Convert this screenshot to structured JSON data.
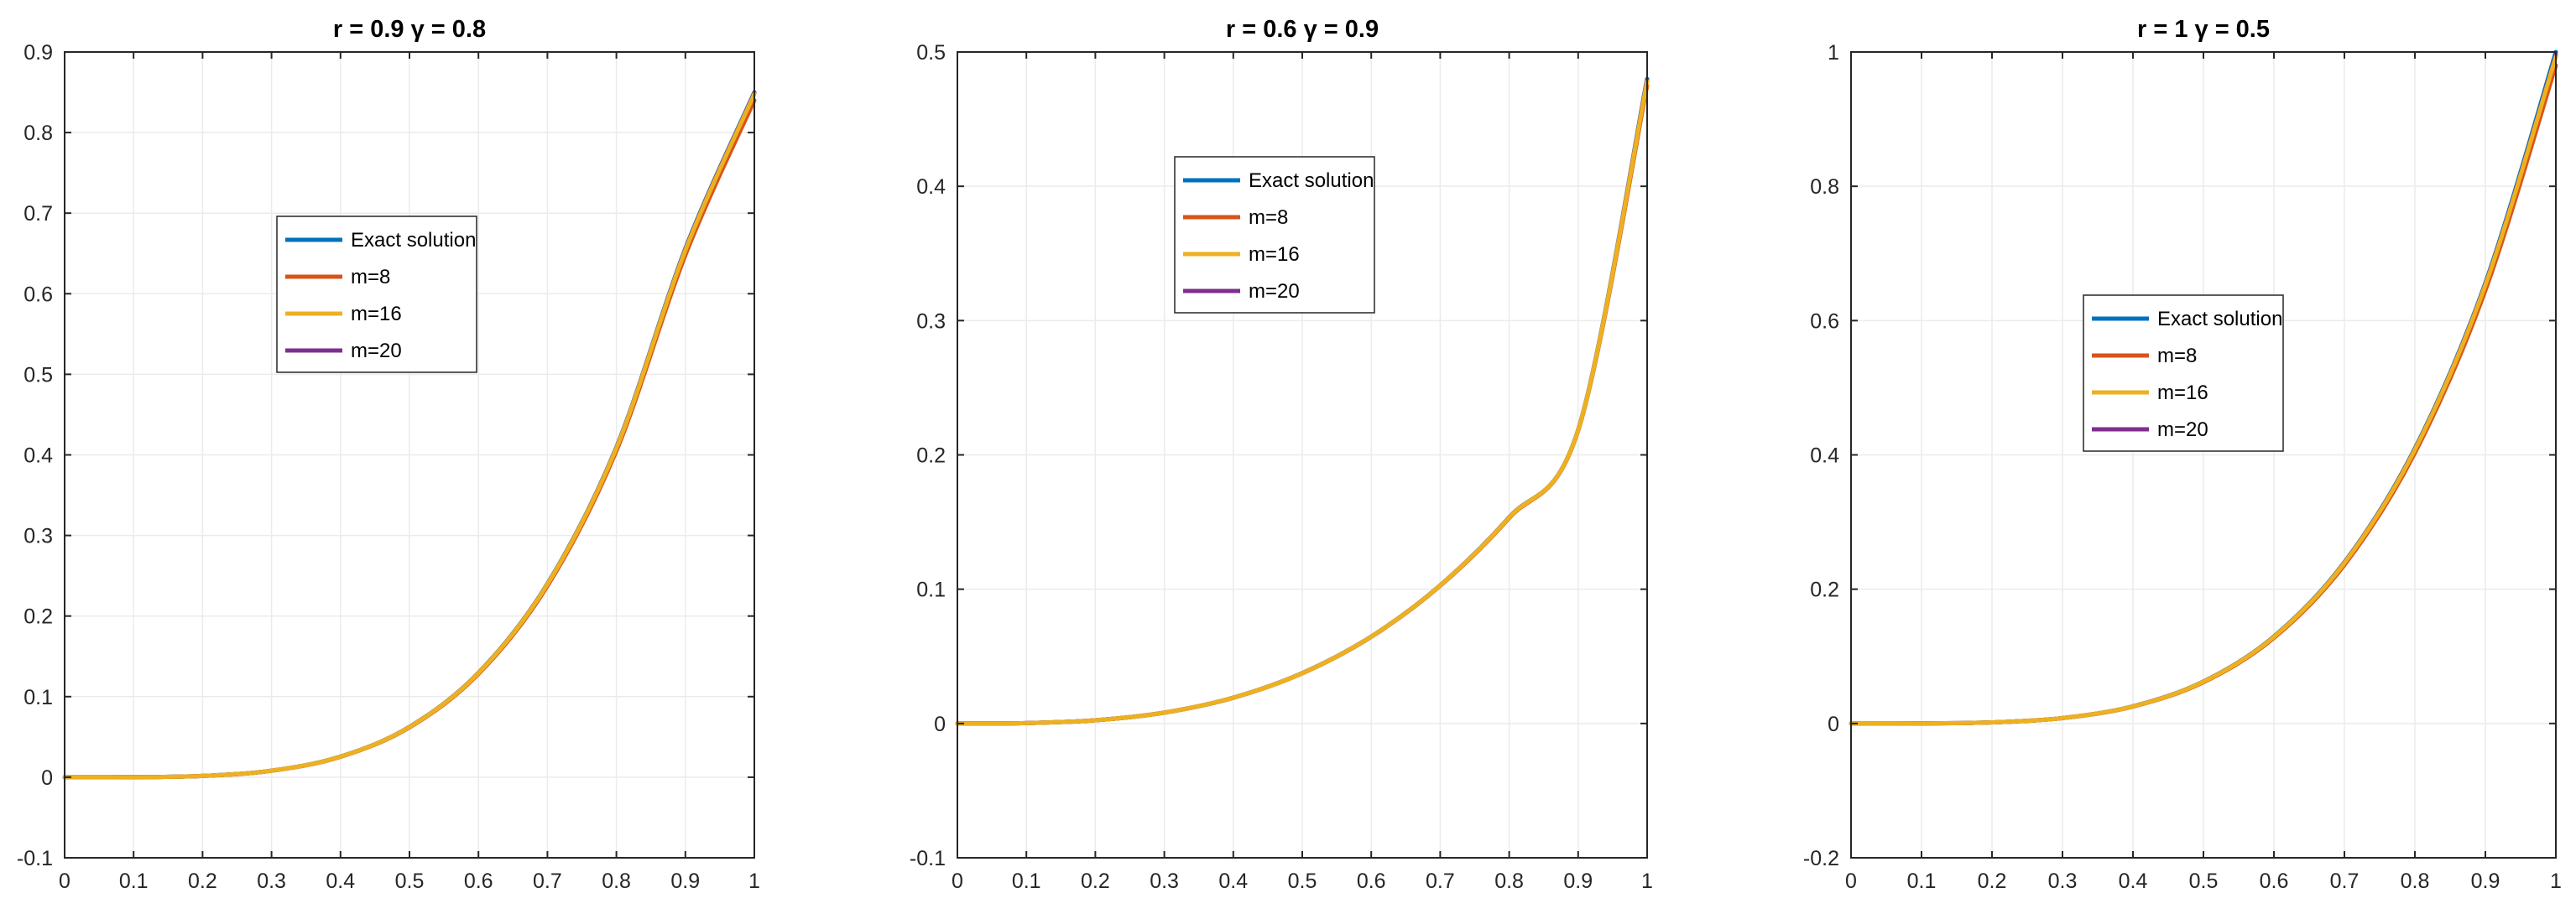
{
  "chart_data": [
    {
      "type": "line",
      "title": "r = 0.9 γ = 0.8",
      "xlim": [
        0,
        1
      ],
      "ylim": [
        -0.1,
        0.9
      ],
      "xticks": [
        0,
        0.1,
        0.2,
        0.3,
        0.4,
        0.5,
        0.6,
        0.7,
        0.8,
        0.9,
        1
      ],
      "xtick_labels": [
        "0",
        "0.1",
        "0.2",
        "0.3",
        "0.4",
        "0.5",
        "0.6",
        "0.7",
        "0.8",
        "0.9",
        "1"
      ],
      "yticks": [
        -0.1,
        0,
        0.1,
        0.2,
        0.3,
        0.4,
        0.5,
        0.6,
        0.7,
        0.8,
        0.9
      ],
      "ytick_labels": [
        "-0.1",
        "0",
        "0.1",
        "0.2",
        "0.3",
        "0.4",
        "0.5",
        "0.6",
        "0.7",
        "0.8",
        "0.9"
      ],
      "grid": true,
      "legend_position": "upper-middle",
      "x": [
        0,
        0.1,
        0.2,
        0.3,
        0.4,
        0.5,
        0.6,
        0.7,
        0.8,
        0.9,
        1
      ],
      "series": [
        {
          "name": "Exact solution",
          "color": "#0072BD",
          "values": [
            0,
            0.0001,
            0.0016,
            0.0081,
            0.0256,
            0.0625,
            0.1296,
            0.2401,
            0.4096,
            0.6561,
            0.85
          ]
        },
        {
          "name": "m=8",
          "color": "#D95319",
          "values": [
            0,
            0.0001,
            0.0016,
            0.008,
            0.0253,
            0.0618,
            0.1281,
            0.2373,
            0.405,
            0.648,
            0.84
          ]
        },
        {
          "name": "m=16",
          "color": "#EDB120",
          "values": [
            0,
            0.0001,
            0.0016,
            0.0081,
            0.0255,
            0.0623,
            0.1292,
            0.2394,
            0.4084,
            0.654,
            0.848
          ]
        },
        {
          "name": "m=20",
          "color": "#7E2F8E",
          "values": [
            0,
            0.0001,
            0.0016,
            0.0081,
            0.0255,
            0.0624,
            0.1293,
            0.2396,
            0.4088,
            0.6548,
            0.849
          ]
        }
      ]
    },
    {
      "type": "line",
      "title": "r = 0.6 γ = 0.9",
      "xlim": [
        0,
        1
      ],
      "ylim": [
        -0.1,
        0.5
      ],
      "xticks": [
        0,
        0.1,
        0.2,
        0.3,
        0.4,
        0.5,
        0.6,
        0.7,
        0.8,
        0.9,
        1
      ],
      "xtick_labels": [
        "0",
        "0.1",
        "0.2",
        "0.3",
        "0.4",
        "0.5",
        "0.6",
        "0.7",
        "0.8",
        "0.9",
        "1"
      ],
      "yticks": [
        -0.1,
        0,
        0.1,
        0.2,
        0.3,
        0.4,
        0.5
      ],
      "ytick_labels": [
        "-0.1",
        "0",
        "0.1",
        "0.2",
        "0.3",
        "0.4",
        "0.5"
      ],
      "grid": true,
      "legend_position": "upper-middle",
      "x": [
        0,
        0.1,
        0.2,
        0.3,
        0.4,
        0.5,
        0.6,
        0.7,
        0.8,
        0.9,
        1
      ],
      "series": [
        {
          "name": "Exact solution",
          "color": "#0072BD",
          "values": [
            0,
            0.0003,
            0.0024,
            0.0081,
            0.0192,
            0.0375,
            0.0648,
            0.1029,
            0.1536,
            0.2187,
            0.48
          ]
        },
        {
          "name": "m=8",
          "color": "#D95319",
          "values": [
            0,
            0.0003,
            0.0024,
            0.0081,
            0.0191,
            0.0373,
            0.0645,
            0.1025,
            0.153,
            0.218,
            0.475
          ]
        },
        {
          "name": "m=16",
          "color": "#EDB120",
          "values": [
            0,
            0.0003,
            0.0024,
            0.0081,
            0.0192,
            0.0374,
            0.0647,
            0.1028,
            0.1534,
            0.2185,
            0.478
          ]
        },
        {
          "name": "m=20",
          "color": "#7E2F8E",
          "values": [
            0,
            0.0003,
            0.0024,
            0.0081,
            0.0192,
            0.0375,
            0.0647,
            0.1028,
            0.1535,
            0.2186,
            0.479
          ]
        }
      ]
    },
    {
      "type": "line",
      "title": "r = 1 γ = 0.5",
      "xlim": [
        0,
        1
      ],
      "ylim": [
        -0.2,
        1
      ],
      "xticks": [
        0,
        0.1,
        0.2,
        0.3,
        0.4,
        0.5,
        0.6,
        0.7,
        0.8,
        0.9,
        1
      ],
      "xtick_labels": [
        "0",
        "0.1",
        "0.2",
        "0.3",
        "0.4",
        "0.5",
        "0.6",
        "0.7",
        "0.8",
        "0.9",
        "1"
      ],
      "yticks": [
        -0.2,
        0,
        0.2,
        0.4,
        0.6,
        0.8,
        1
      ],
      "ytick_labels": [
        "-0.2",
        "0",
        "0.2",
        "0.4",
        "0.6",
        "0.8",
        "1"
      ],
      "grid": true,
      "legend_position": "middle",
      "x": [
        0,
        0.1,
        0.2,
        0.3,
        0.4,
        0.5,
        0.6,
        0.7,
        0.8,
        0.9,
        1
      ],
      "series": [
        {
          "name": "Exact solution",
          "color": "#0072BD",
          "values": [
            0,
            0.0001,
            0.0016,
            0.0081,
            0.0256,
            0.0625,
            0.1296,
            0.2401,
            0.4096,
            0.6561,
            1
          ]
        },
        {
          "name": "m=8",
          "color": "#D95319",
          "values": [
            0,
            0.0001,
            0.0016,
            0.008,
            0.0252,
            0.0615,
            0.1275,
            0.2362,
            0.403,
            0.645,
            0.98
          ]
        },
        {
          "name": "m=16",
          "color": "#EDB120",
          "values": [
            0,
            0.0001,
            0.0016,
            0.0081,
            0.0255,
            0.0622,
            0.129,
            0.239,
            0.4078,
            0.653,
            0.993
          ]
        },
        {
          "name": "m=20",
          "color": "#7E2F8E",
          "values": [
            0,
            0.0001,
            0.0016,
            0.0081,
            0.0255,
            0.0623,
            0.1292,
            0.2394,
            0.4084,
            0.654,
            0.995
          ]
        }
      ]
    }
  ]
}
